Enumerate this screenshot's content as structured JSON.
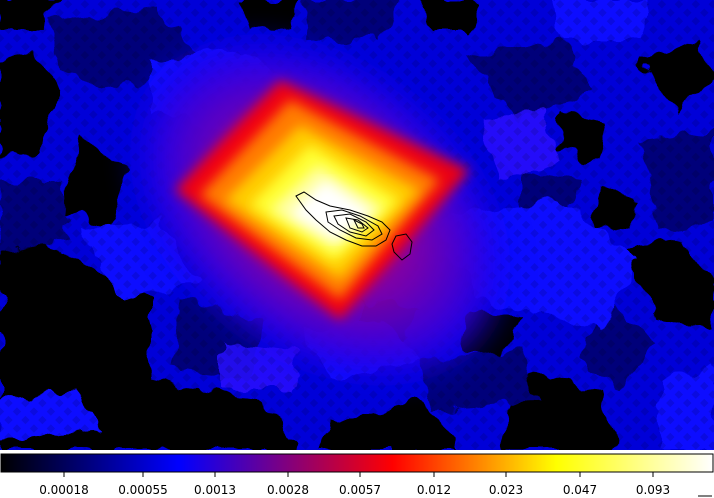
{
  "image": {
    "colormap": "heat",
    "background_color": "#000000",
    "contour_color": "#000000"
  },
  "colorbar": {
    "stops": [
      "#000000",
      "#0000ff",
      "#ff0000",
      "#ffff00",
      "#ffffff"
    ],
    "tick_labels": [
      "0.00018",
      "0.00055",
      "0.0013",
      "0.0028",
      "0.0057",
      "0.012",
      "0.023",
      "0.047",
      "0.093"
    ]
  }
}
